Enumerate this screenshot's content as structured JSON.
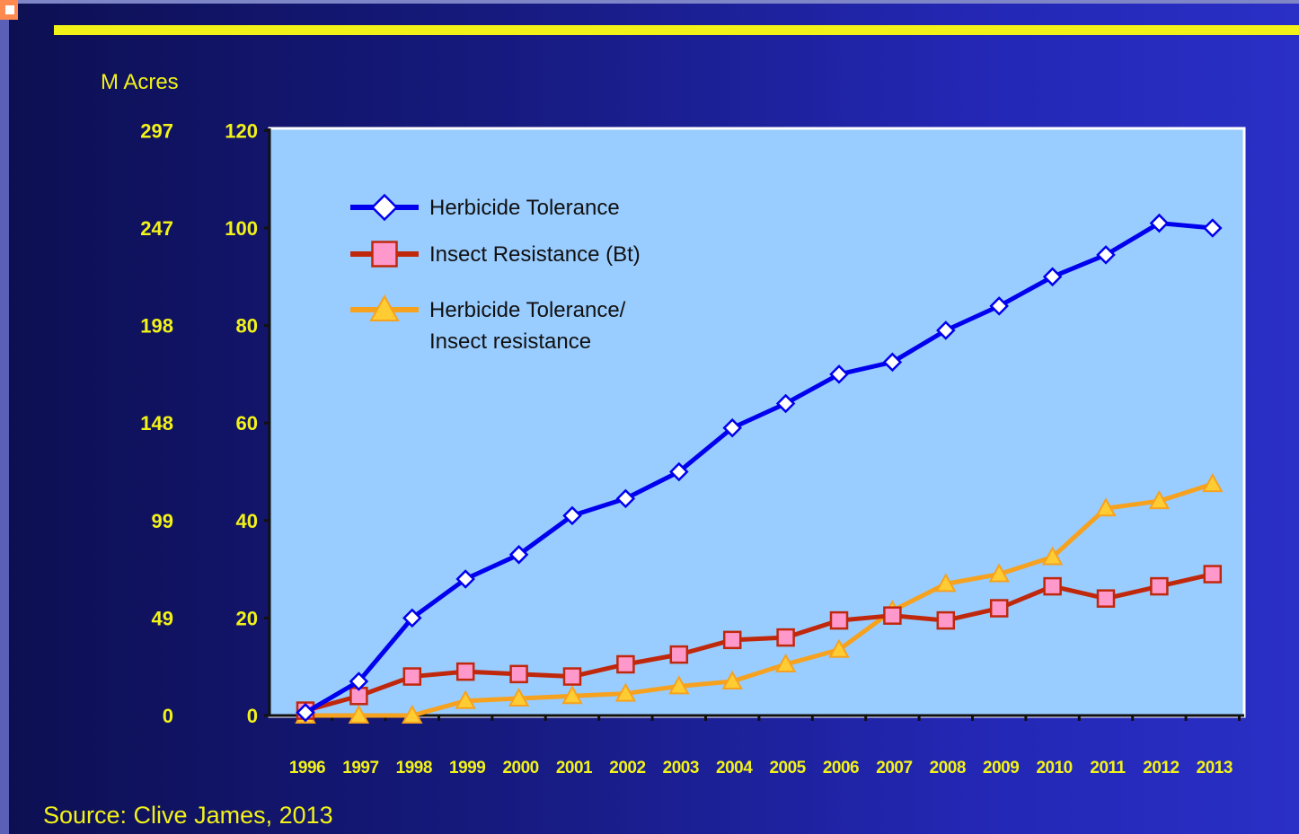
{
  "unit_label": "M Acres",
  "source": "Source: Clive James, 2013",
  "colors": {
    "background": "#15197a",
    "plot_area": "#99ccff",
    "accent_yellow": "#f2f218",
    "ht": "#0000ee",
    "bt": "#c0280c",
    "stacked": "#f6a21e"
  },
  "chart_data": {
    "type": "line",
    "title": "",
    "xlabel": "",
    "ylabel": "M Acres",
    "ylim": [
      0,
      120
    ],
    "y_ticks": [
      "0",
      "20",
      "40",
      "60",
      "80",
      "100",
      "120"
    ],
    "y2_ticks": [
      "0",
      "49",
      "99",
      "148",
      "198",
      "247",
      "297"
    ],
    "x": [
      "1996",
      "1997",
      "1998",
      "1999",
      "2000",
      "2001",
      "2002",
      "2003",
      "2004",
      "2005",
      "2006",
      "2007",
      "2008",
      "2009",
      "2010",
      "2011",
      "2012",
      "2013"
    ],
    "series": [
      {
        "name": "Herbicide Tolerance",
        "marker": "diamond",
        "values": [
          0.6,
          7,
          20,
          28,
          33,
          41,
          44.5,
          50,
          59,
          64,
          70,
          72.5,
          79,
          84,
          90,
          94.5,
          101,
          100
        ]
      },
      {
        "name": "Insect Resistance (Bt)",
        "marker": "square",
        "values": [
          1,
          4,
          8,
          9,
          8.5,
          8,
          10.5,
          12.5,
          15.5,
          16,
          19.5,
          20.5,
          19.5,
          22,
          26.5,
          24,
          26.5,
          29
        ]
      },
      {
        "name": "Herbicide Tolerance/\nInsect resistance",
        "marker": "triangle",
        "values": [
          0,
          0,
          0,
          3,
          3.5,
          4,
          4.5,
          6,
          7,
          10.5,
          13.5,
          21.5,
          27,
          29,
          32.5,
          42.5,
          44,
          47.5
        ]
      }
    ],
    "legend_position": "top-left",
    "grid": false
  }
}
